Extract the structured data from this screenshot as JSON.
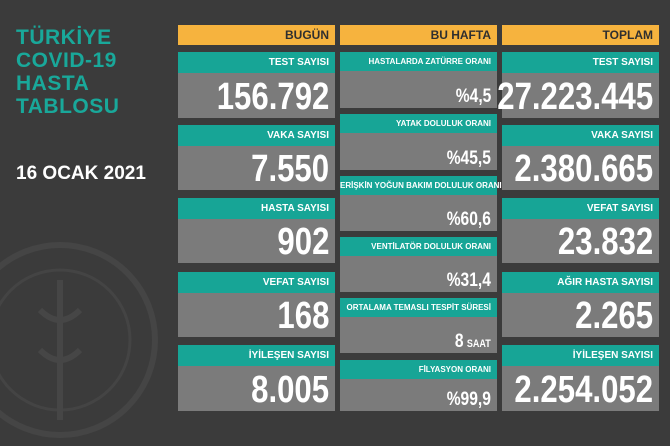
{
  "title": [
    "TÜRKİYE",
    "COVID-19",
    "HASTA",
    "TABLOSU"
  ],
  "date": "16 OCAK 2021",
  "columns": [
    {
      "header": "BUGÜN",
      "items": [
        {
          "label": "TEST SAYISI",
          "value": "156.792"
        },
        {
          "label": "VAKA SAYISI",
          "value": "7.550"
        },
        {
          "label": "HASTA SAYISI",
          "value": "902"
        },
        {
          "label": "VEFAT SAYISI",
          "value": "168"
        },
        {
          "label": "İYİLEŞEN SAYISI",
          "value": "8.005"
        }
      ]
    },
    {
      "header": "BU HAFTA",
      "items": [
        {
          "label": "HASTALARDA ZATÜRRE ORANI",
          "value": "%4,5"
        },
        {
          "label": "YATAK DOLULUK ORANI",
          "value": "%45,5"
        },
        {
          "label": "ERİŞKİN YOĞUN BAKIM DOLULUK ORANI",
          "value": "%60,6"
        },
        {
          "label": "VENTİLATÖR DOLULUK ORANI",
          "value": "%31,4"
        },
        {
          "label": "ORTALAMA TEMASLI TESPİT SÜRESİ",
          "value": "8",
          "unit": "SAAT"
        },
        {
          "label": "FİLYASYON ORANI",
          "value": "%99,9"
        }
      ]
    },
    {
      "header": "TOPLAM",
      "items": [
        {
          "label": "TEST SAYISI",
          "value": "27.223.445"
        },
        {
          "label": "VAKA SAYISI",
          "value": "2.380.665"
        },
        {
          "label": "VEFAT SAYISI",
          "value": "23.832"
        },
        {
          "label": "AĞIR HASTA SAYISI",
          "value": "2.265"
        },
        {
          "label": "İYİLEŞEN SAYISI",
          "value": "2.254.052"
        }
      ]
    }
  ]
}
